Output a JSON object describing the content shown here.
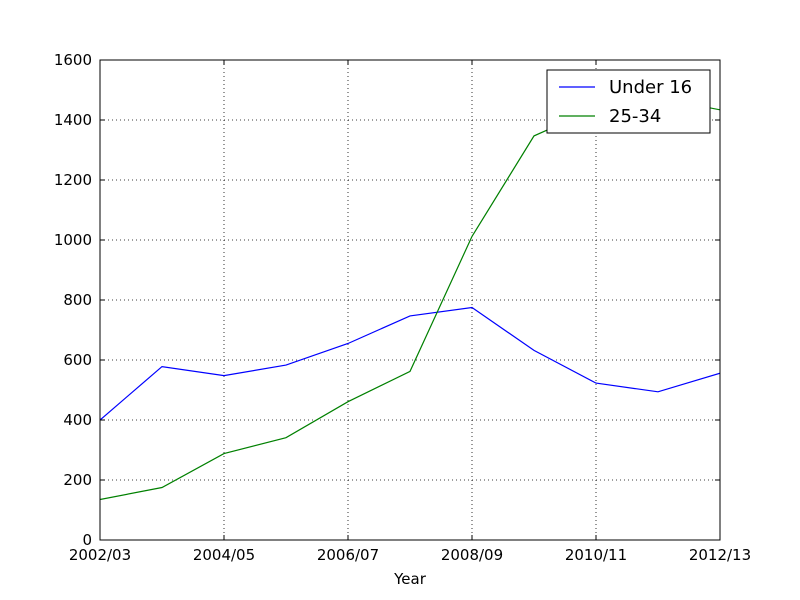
{
  "chart_data": {
    "type": "line",
    "title": "",
    "xlabel": "Year",
    "ylabel": "",
    "categories": [
      "2002/03",
      "2003/04",
      "2004/05",
      "2005/06",
      "2006/07",
      "2007/08",
      "2008/09",
      "2009/10",
      "2010/11",
      "2011/12",
      "2012/13"
    ],
    "x_tick_labels": [
      "2002/03",
      "2004/05",
      "2006/07",
      "2008/09",
      "2010/11",
      "2012/13"
    ],
    "ylim": [
      0,
      1600
    ],
    "y_ticks": [
      0,
      200,
      400,
      600,
      800,
      1000,
      1200,
      1400,
      1600
    ],
    "grid": true,
    "legend_position": "top-right",
    "series": [
      {
        "name": "Under 16",
        "color": "#0000ff",
        "values": [
          400,
          578,
          548,
          583,
          655,
          747,
          775,
          632,
          523,
          494,
          556
        ]
      },
      {
        "name": "25-34",
        "color": "#008000",
        "values": [
          135,
          175,
          288,
          341,
          461,
          562,
          1012,
          1347,
          1439,
          1474,
          1434
        ]
      }
    ]
  }
}
